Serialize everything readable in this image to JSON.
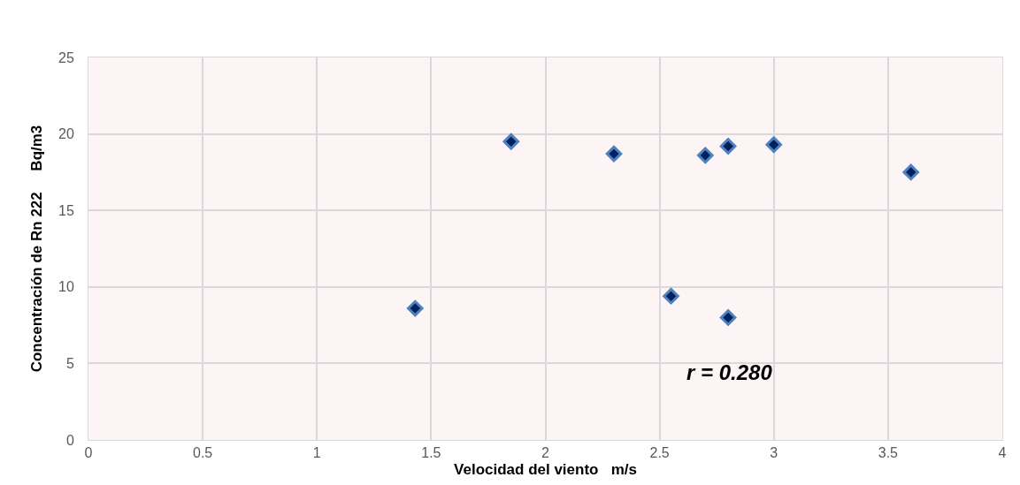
{
  "chart_data": {
    "type": "scatter",
    "xlabel": "Velocidad del viento   m/s",
    "ylabel": "Concentración de Rn 222     Bq/m3",
    "x": [
      1.43,
      1.85,
      2.3,
      2.55,
      2.7,
      2.8,
      2.8,
      3.0,
      3.6
    ],
    "series": [
      {
        "color": "#002060",
        "values": [
          8.6,
          19.5,
          18.7,
          9.4,
          18.6,
          19.2,
          8.0,
          19.3,
          17.5
        ]
      }
    ],
    "xlim": [
      0,
      4
    ],
    "xticks": [
      0,
      0.5,
      1,
      1.5,
      2,
      2.5,
      3,
      3.5,
      4
    ],
    "ylim": [
      0,
      25
    ],
    "yticks": [
      0,
      5,
      10,
      15,
      20,
      25
    ],
    "grid": true,
    "marker": "diamond",
    "annotations": [
      "r = 0.280"
    ]
  }
}
